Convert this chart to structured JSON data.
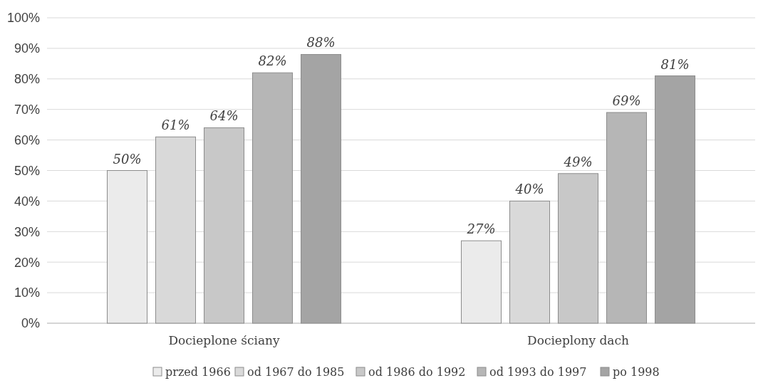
{
  "chart_data": {
    "type": "bar",
    "categories": [
      "Docieplone ściany",
      "Docieplony dach"
    ],
    "series": [
      {
        "name": "przed 1966",
        "color": "#ebebeb",
        "values": [
          50,
          27
        ],
        "value_labels": [
          "50%",
          "27%"
        ]
      },
      {
        "name": "od 1967 do 1985",
        "color": "#d9d9d9",
        "values": [
          61,
          40
        ],
        "value_labels": [
          "61%",
          "40%"
        ]
      },
      {
        "name": "od 1986 do 1992",
        "color": "#c8c8c8",
        "values": [
          64,
          49
        ],
        "value_labels": [
          "64%",
          "49%"
        ]
      },
      {
        "name": "od 1993 do 1997",
        "color": "#b6b6b6",
        "values": [
          82,
          69
        ],
        "value_labels": [
          "82%",
          "69%"
        ]
      },
      {
        "name": "po 1998",
        "color": "#a4a4a4",
        "values": [
          88,
          81
        ],
        "value_labels": [
          "88%",
          "81%"
        ]
      }
    ],
    "ylim": [
      0,
      100
    ],
    "yticks": [
      {
        "value": 0,
        "label": "0%"
      },
      {
        "value": 10,
        "label": "10%"
      },
      {
        "value": 20,
        "label": "20%"
      },
      {
        "value": 30,
        "label": "30%"
      },
      {
        "value": 40,
        "label": "40%"
      },
      {
        "value": 50,
        "label": "50%"
      },
      {
        "value": 60,
        "label": "60%"
      },
      {
        "value": 70,
        "label": "70%"
      },
      {
        "value": 80,
        "label": "80%"
      },
      {
        "value": 90,
        "label": "90%"
      },
      {
        "value": 100,
        "label": "100%"
      }
    ],
    "grid": "y",
    "legend": "bottom"
  }
}
